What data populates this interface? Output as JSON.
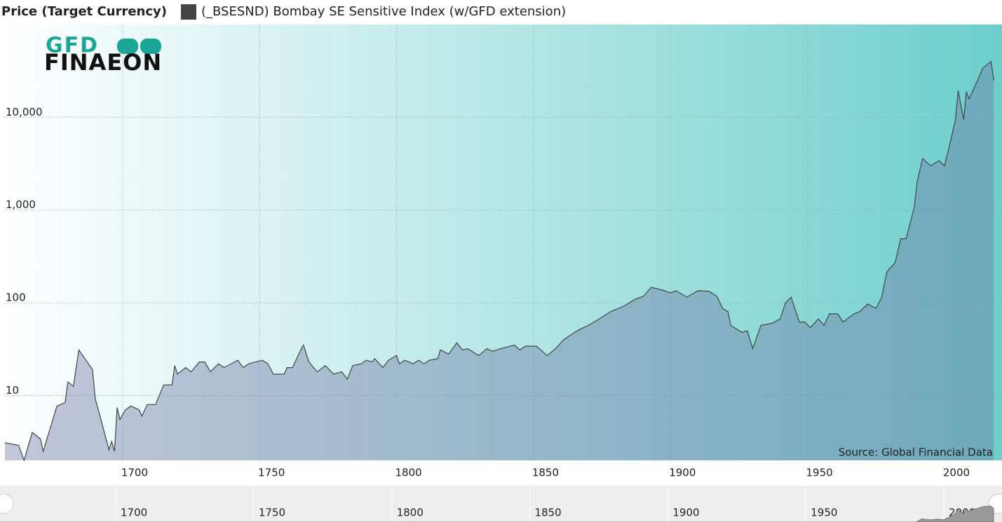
{
  "chart_data": {
    "type": "area",
    "legend_title": "Price (Target Currency)",
    "logo": {
      "top": "GFD",
      "bottom": "FINAEON"
    },
    "source": "Source: Global Financial Data",
    "log_scale": true,
    "grid": true,
    "xlim": [
      1656.5,
      2021
    ],
    "ylim": [
      2,
      100000
    ],
    "xticks": [
      1700,
      1750,
      1800,
      1850,
      1900,
      1950,
      2000
    ],
    "yticks": [
      10,
      100,
      {
        "value": 1000,
        "label": "1,000"
      },
      {
        "value": 10000,
        "label": "10,000"
      }
    ],
    "series": [
      {
        "name": "(_BSESND) Bombay SE Sensitive Index (w/GFD extension)",
        "color": "#444444",
        "x": [
          1657,
          1662,
          1664,
          1667,
          1670,
          1671,
          1676,
          1679,
          1680,
          1682,
          1684,
          1689,
          1690,
          1692,
          1695,
          1696,
          1697,
          1698,
          1699,
          1701,
          1703,
          1706,
          1707,
          1709,
          1712,
          1715,
          1718,
          1719,
          1720,
          1723,
          1725,
          1728,
          1730,
          1732,
          1735,
          1737,
          1742,
          1744,
          1746,
          1751,
          1753,
          1755,
          1759,
          1760,
          1762,
          1765,
          1766,
          1768,
          1771,
          1774,
          1777,
          1780,
          1782,
          1784,
          1787,
          1789,
          1791,
          1792,
          1795,
          1797,
          1800,
          1801,
          1803,
          1806,
          1808,
          1810,
          1812,
          1815,
          1816,
          1819,
          1822,
          1824,
          1826,
          1830,
          1833,
          1835,
          1838,
          1843,
          1845,
          1847,
          1851,
          1855,
          1858,
          1861,
          1865,
          1867,
          1870,
          1874,
          1878,
          1883,
          1887,
          1890,
          1893,
          1897,
          1900,
          1902,
          1906,
          1910,
          1914,
          1917,
          1919,
          1921,
          1922,
          1926,
          1928,
          1930,
          1933,
          1937,
          1940,
          1942,
          1944,
          1947,
          1949,
          1951,
          1954,
          1956,
          1958,
          1961,
          1963,
          1967,
          1969,
          1972,
          1975,
          1977,
          1979,
          1982,
          1984,
          1986,
          1989,
          1990,
          1992,
          1995,
          1998,
          2000,
          2002,
          2004,
          2005,
          2007,
          2008,
          2009,
          2012,
          2014,
          2017,
          2018
        ],
        "values": [
          3.1,
          2.9,
          2.0,
          4.0,
          3.4,
          2.5,
          7.7,
          8.4,
          14,
          12.5,
          31,
          19,
          9.2,
          5.6,
          2.6,
          3.2,
          2.5,
          7.4,
          5.5,
          7.0,
          7.7,
          7.0,
          6.0,
          8.0,
          8.0,
          13,
          13,
          21,
          17,
          20,
          18,
          23,
          23,
          18,
          22,
          20,
          24,
          20,
          22,
          24,
          22,
          17,
          17,
          20,
          20,
          31,
          35,
          23,
          18,
          21,
          17,
          18,
          15,
          21,
          22,
          24,
          23,
          25,
          20,
          24,
          27,
          22,
          24,
          22,
          24,
          22,
          24,
          25,
          31,
          28,
          37,
          31,
          32,
          27,
          32,
          30,
          32,
          35,
          31,
          34,
          34,
          27,
          32,
          40,
          48,
          52,
          57,
          67,
          80,
          92,
          109,
          117,
          147,
          137,
          128,
          135,
          115,
          135,
          133,
          117,
          87,
          80,
          57,
          48,
          50,
          32,
          57,
          60,
          67,
          100,
          115,
          62,
          62,
          54,
          67,
          57,
          76,
          76,
          62,
          76,
          80,
          97,
          87,
          113,
          216,
          271,
          490,
          490,
          1080,
          1990,
          3600,
          3000,
          3400,
          3000,
          5200,
          9400,
          19400,
          9400,
          18800,
          15800,
          24600,
          33900,
          40000,
          25000
        ]
      }
    ]
  }
}
